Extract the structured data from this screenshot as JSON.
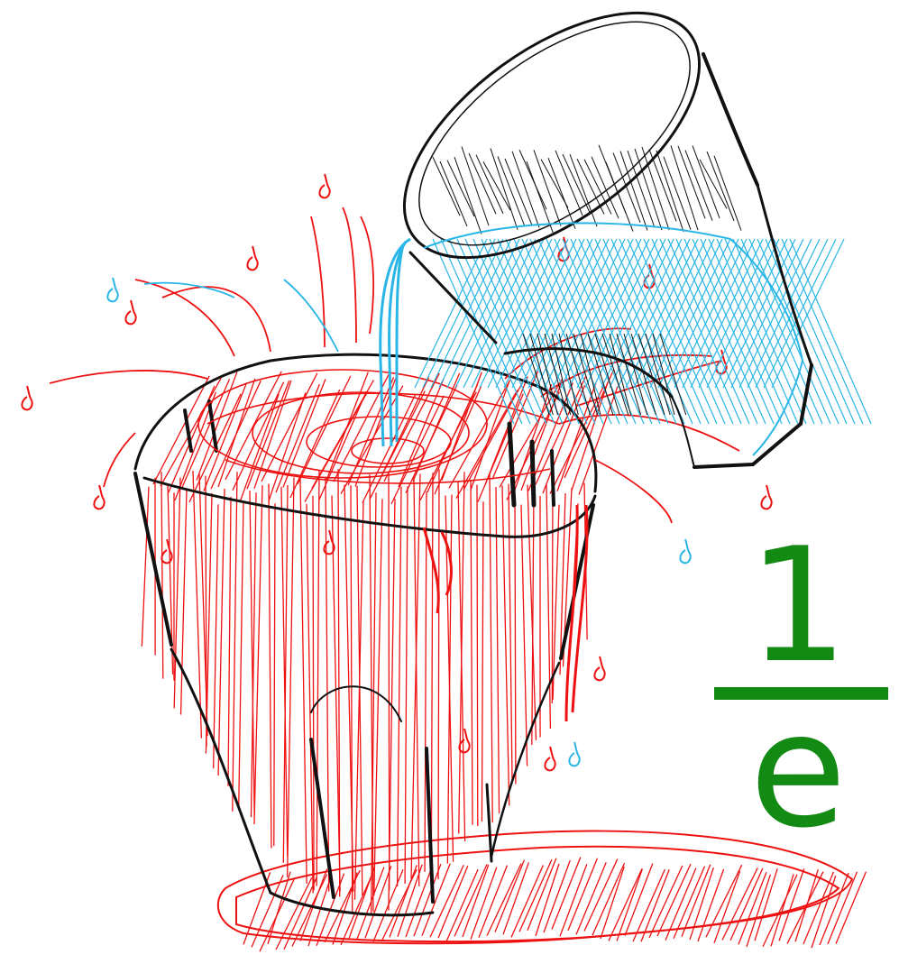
{
  "illustration": {
    "subject": "sketch",
    "colors": {
      "ink": "#111111",
      "water": "#29b6e6",
      "liquid": "#ee1111",
      "formula": "#138a13"
    }
  },
  "formula": {
    "numerator": "1",
    "denominator": "e"
  }
}
